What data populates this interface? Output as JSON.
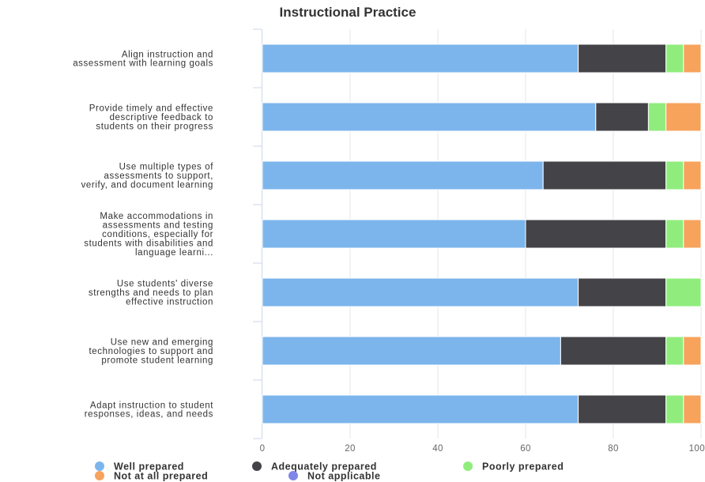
{
  "chart_data": {
    "type": "bar",
    "orientation": "horizontal",
    "stacked": true,
    "title": "Instructional Practice",
    "categories": [
      [
        "Align instruction and",
        "assessment with learning goals"
      ],
      [
        "Provide timely and effective",
        "descriptive feedback to",
        "students on their progress"
      ],
      [
        "Use multiple types of",
        "assessments to support,",
        "verify, and document learning"
      ],
      [
        "Make accommodations in",
        "assessments and testing",
        "conditions, especially for",
        "students with disabilities and",
        "language learni..."
      ],
      [
        "Use students' diverse",
        "strengths and needs to plan",
        "effective instruction"
      ],
      [
        "Use new and emerging",
        "technologies to support and",
        "promote student learning"
      ],
      [
        "Adapt instruction to student",
        "responses, ideas, and needs"
      ]
    ],
    "series": [
      {
        "name": "Well prepared",
        "color": "#7cb5ec",
        "values": [
          72,
          76,
          64,
          60,
          72,
          68,
          72
        ]
      },
      {
        "name": "Adequately prepared",
        "color": "#434348",
        "values": [
          20,
          12,
          28,
          32,
          20,
          24,
          20
        ]
      },
      {
        "name": "Poorly prepared",
        "color": "#90ed7d",
        "values": [
          4,
          4,
          4,
          4,
          8,
          4,
          4
        ]
      },
      {
        "name": "Not at all prepared",
        "color": "#f7a35c",
        "values": [
          4,
          8,
          4,
          4,
          0,
          4,
          4
        ]
      },
      {
        "name": "Not applicable",
        "color": "#8085e9",
        "values": [
          0,
          0,
          0,
          0,
          0,
          0,
          0
        ]
      }
    ],
    "x_ticks": [
      0,
      20,
      40,
      60,
      80,
      100
    ],
    "xlim": [
      0,
      100
    ],
    "xlabel": "",
    "ylabel": "",
    "grid": true,
    "legend_position": "bottom"
  }
}
